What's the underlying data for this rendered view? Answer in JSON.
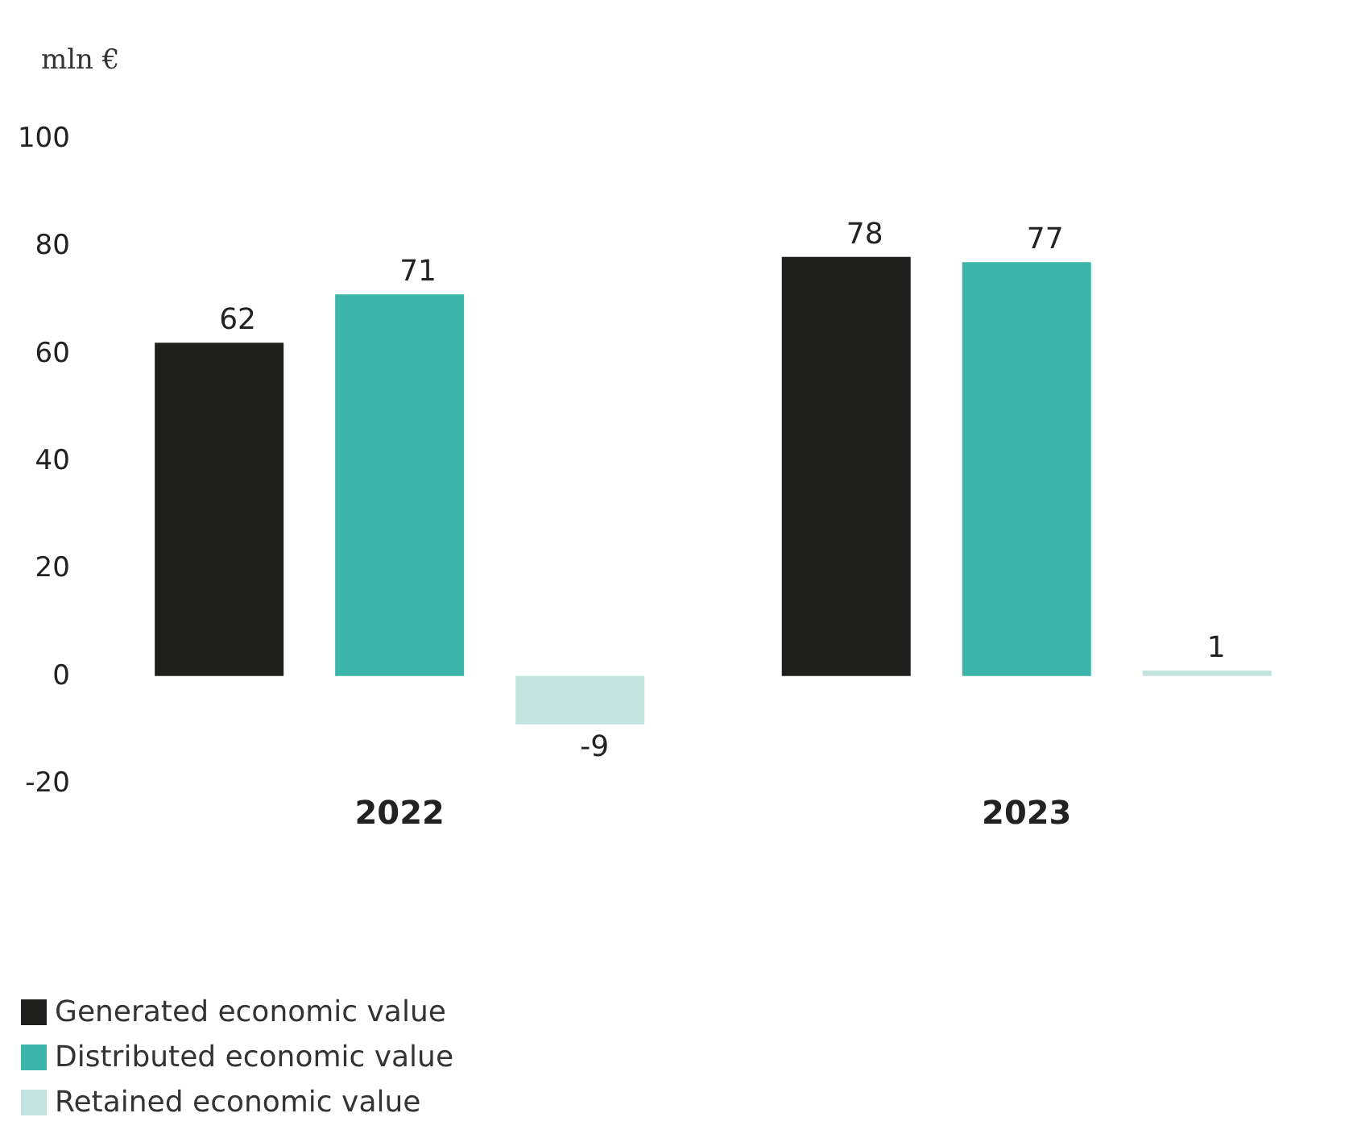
{
  "chart_data": {
    "type": "bar",
    "ylabel": "mln €",
    "categories": [
      "2022",
      "2023"
    ],
    "series": [
      {
        "name": "Generated economic value",
        "color": "#1f1f1e",
        "values": [
          62,
          78
        ]
      },
      {
        "name": "Distributed economic value",
        "color": "#3bb5aa",
        "values": [
          71,
          77
        ]
      },
      {
        "name": "Retained economic value",
        "color": "#c3e4df",
        "values": [
          -9,
          1
        ]
      }
    ],
    "ylim": [
      -20,
      100
    ],
    "yticks": [
      -20,
      0,
      20,
      40,
      60,
      80,
      100
    ],
    "data_labels": true,
    "grid": false,
    "legend": "bottom left"
  }
}
